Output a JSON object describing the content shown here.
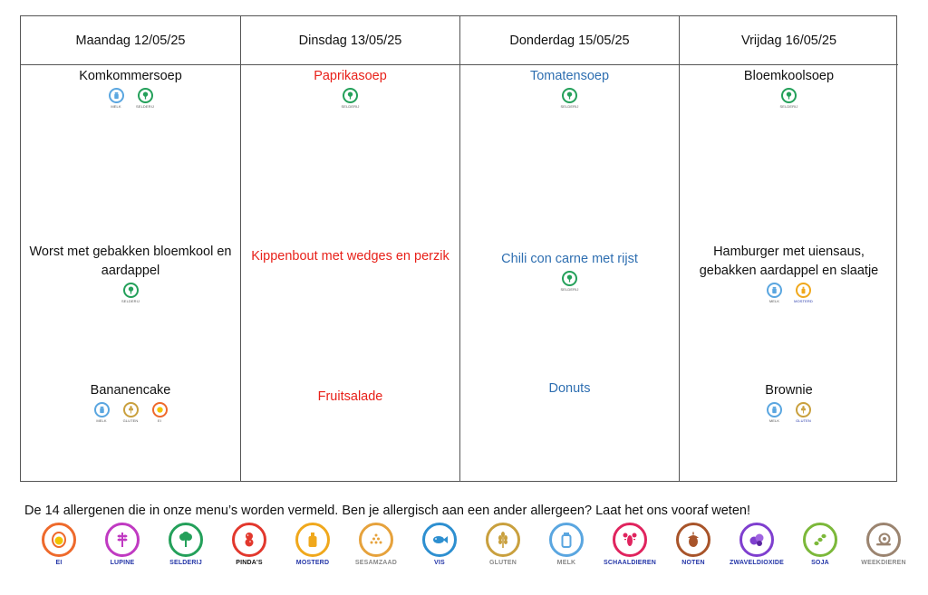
{
  "days": [
    {
      "header": "Maandag 12/05/25",
      "soup": {
        "name": "Komkommersoep",
        "allergens": [
          "MELK",
          "SELDERIJ"
        ]
      },
      "main": {
        "name": "Worst met gebakken bloemkool en aardappel",
        "allergens": [
          "SELDERIJ"
        ]
      },
      "dessert": {
        "name": "Bananencake",
        "allergens": [
          "MELK",
          "GLUTEN",
          "EI"
        ]
      }
    },
    {
      "header": "Dinsdag 13/05/25",
      "soup": {
        "name": "Paprikasoep",
        "allergens": [
          "SELDERIJ"
        ]
      },
      "main": {
        "name": "Kippenbout met wedges en perzik",
        "allergens": []
      },
      "dessert": {
        "name": "Fruitsalade",
        "allergens": []
      }
    },
    {
      "header": "Donderdag 15/05/25",
      "soup": {
        "name": "Tomatensoep",
        "allergens": [
          "SELDERIJ"
        ]
      },
      "main": {
        "name": "Chili con carne met rijst",
        "allergens": [
          "SELDERIJ"
        ]
      },
      "dessert": {
        "name": "Donuts",
        "allergens": []
      }
    },
    {
      "header": "Vrijdag 16/05/25",
      "soup": {
        "name": "Bloemkoolsoep",
        "allergens": [
          "SELDERIJ"
        ]
      },
      "main": {
        "name": "Hamburger met uiensaus, gebakken aardappel en slaatje",
        "allergens": [
          "MELK",
          "MOSTERD"
        ]
      },
      "dessert": {
        "name": "Brownie",
        "allergens": [
          "MELK",
          "GLUTEN"
        ]
      }
    }
  ],
  "colors": {
    "day2_text": "#e8211a",
    "day3_text": "#2f6fb1"
  },
  "legend": {
    "intro": "De 14 allergenen die in onze menu’s worden vermeld. Ben je allergisch aan een ander allergeen? Laat het ons vooraf weten!",
    "items": [
      {
        "label": "EI",
        "icon": "egg-icon",
        "color": "#ee6a2c"
      },
      {
        "label": "LUPINE",
        "icon": "lupine-icon",
        "color": "#c03ac2"
      },
      {
        "label": "SELDERIJ",
        "icon": "celery-icon",
        "color": "#24a05a"
      },
      {
        "label": "PINDA'S",
        "icon": "peanut-icon",
        "color": "#e2382d"
      },
      {
        "label": "MOSTERD",
        "icon": "mustard-icon",
        "color": "#f0a81c"
      },
      {
        "label": "SESAMZAAD",
        "icon": "sesame-icon",
        "color": "#e6a23c"
      },
      {
        "label": "VIS",
        "icon": "fish-icon",
        "color": "#2d8fd0"
      },
      {
        "label": "GLUTEN",
        "icon": "wheat-icon",
        "color": "#c9a03e"
      },
      {
        "label": "MELK",
        "icon": "milk-icon",
        "color": "#5aa6e0"
      },
      {
        "label": "SCHAALDIEREN",
        "icon": "lobster-icon",
        "color": "#e0245e"
      },
      {
        "label": "NOTEN",
        "icon": "acorn-icon",
        "color": "#a8542a"
      },
      {
        "label": "ZWAVELDIOXIDE",
        "icon": "sulphite-icon",
        "color": "#7f3fcf"
      },
      {
        "label": "SOJA",
        "icon": "soy-icon",
        "color": "#7cb83a"
      },
      {
        "label": "WEEKDIEREN",
        "icon": "snail-icon",
        "color": "#9b8470"
      }
    ]
  }
}
